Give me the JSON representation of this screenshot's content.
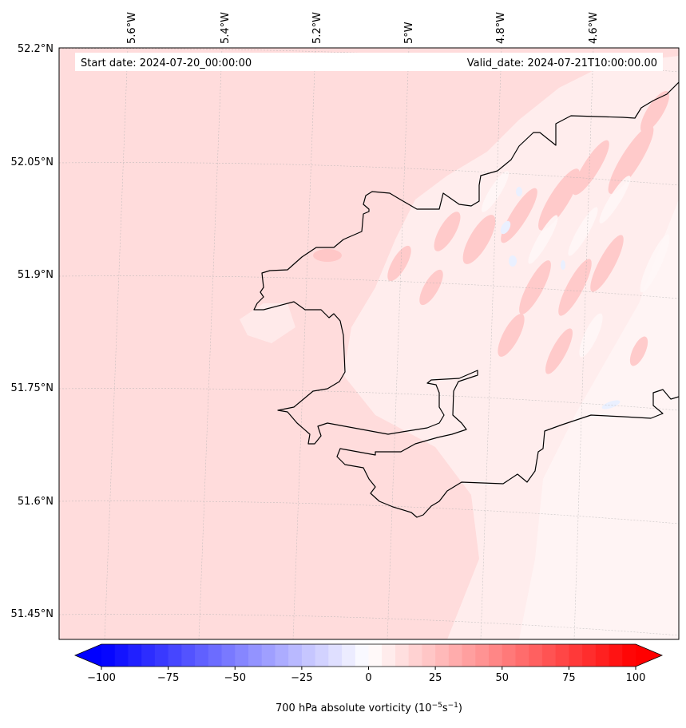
{
  "header": {
    "start_date": "Start date: 2024-07-20_00:00:00",
    "valid_date": "Valid_date: 2024-07-21T10:00:00.00"
  },
  "map": {
    "lon_labels": [
      "5.6°W",
      "5.4°W",
      "5.2°W",
      "5°W",
      "4.8°W",
      "4.6°W"
    ],
    "lat_labels": [
      "52.2°N",
      "52.05°N",
      "51.9°N",
      "51.75°N",
      "51.6°N",
      "51.45°N"
    ],
    "colors": {
      "background_field": "#ffdcdc",
      "light_field": "#ffeeee",
      "stronger_field": "#ffc8c8",
      "negative_field": "#e8eeff",
      "coastline": "#000000"
    }
  },
  "colorbar": {
    "ticks": [
      "−100",
      "−75",
      "−50",
      "−25",
      "0",
      "25",
      "50",
      "75",
      "100"
    ],
    "label": "700 hPa absolute vorticity (10",
    "label_exp1": "−5",
    "label_mid": "s",
    "label_exp2": "−1",
    "label_end": ")",
    "min": -100,
    "max": 100,
    "extend": "both",
    "color_low": "#0000ff",
    "color_mid": "#ffffff",
    "color_high": "#ff0000"
  }
}
